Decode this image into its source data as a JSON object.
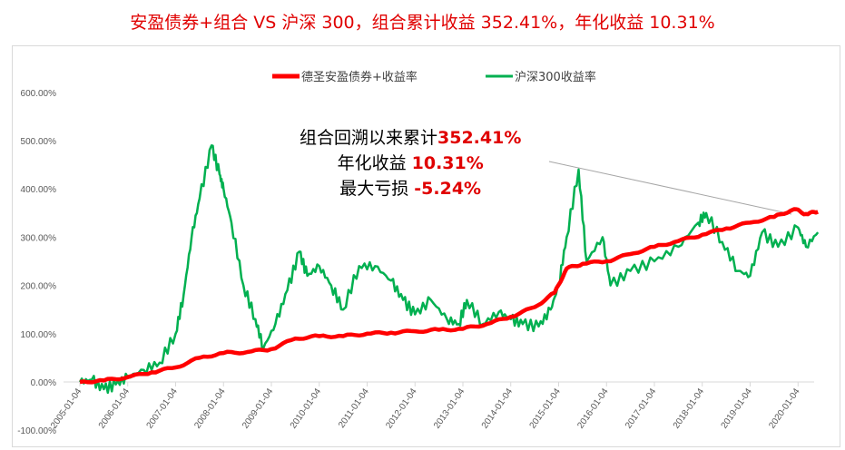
{
  "title": "安盈债券+组合 VS 沪深 300，组合累计收益 352.41%，年化收益 10.31%",
  "annotation": {
    "line1_label": "组合回溯以来累计",
    "line1_value": "352.41%",
    "line2_label": "年化收益 ",
    "line2_value": "10.31%",
    "line3_label": "最大亏损 ",
    "line3_value": "-5.24%"
  },
  "chart_data": {
    "type": "line",
    "legend_position": "top",
    "grid": "horizontal",
    "ylim": [
      -100,
      600
    ],
    "yticks": [
      "600.00%",
      "500.00%",
      "400.00%",
      "300.00%",
      "200.00%",
      "100.00%",
      "0.00%",
      "-100.00%"
    ],
    "ytick_values": [
      600,
      500,
      400,
      300,
      200,
      100,
      0,
      -100
    ],
    "xticks": [
      "2005-01-04",
      "2006-01-04",
      "2007-01-04",
      "2008-01-04",
      "2009-01-04",
      "2010-01-04",
      "2011-01-04",
      "2012-01-04",
      "2013-01-04",
      "2014-01-04",
      "2015-01-04",
      "2016-01-04",
      "2017-01-04",
      "2018-01-04",
      "2019-01-04",
      "2020-01-04"
    ],
    "series": [
      {
        "name": "德圣安盈债券+收益率",
        "color": "#ff0000",
        "points": [
          [
            "2005-01",
            0
          ],
          [
            "2005-07",
            3
          ],
          [
            "2006-01",
            10
          ],
          [
            "2006-07",
            20
          ],
          [
            "2007-01",
            30
          ],
          [
            "2007-07",
            50
          ],
          [
            "2008-01",
            60
          ],
          [
            "2008-07",
            62
          ],
          [
            "2009-01",
            68
          ],
          [
            "2009-07",
            90
          ],
          [
            "2010-01",
            95
          ],
          [
            "2010-07",
            95
          ],
          [
            "2011-01",
            100
          ],
          [
            "2011-07",
            102
          ],
          [
            "2012-01",
            105
          ],
          [
            "2012-07",
            108
          ],
          [
            "2013-01",
            110
          ],
          [
            "2013-07",
            120
          ],
          [
            "2014-01",
            135
          ],
          [
            "2014-07",
            155
          ],
          [
            "2014-12",
            185
          ],
          [
            "2015-03",
            235
          ],
          [
            "2015-07",
            245
          ],
          [
            "2016-01",
            250
          ],
          [
            "2016-07",
            265
          ],
          [
            "2017-01",
            280
          ],
          [
            "2017-07",
            292
          ],
          [
            "2018-01",
            305
          ],
          [
            "2018-07",
            318
          ],
          [
            "2019-01",
            330
          ],
          [
            "2019-07",
            342
          ],
          [
            "2019-12",
            358
          ],
          [
            "2020-03",
            348
          ],
          [
            "2020-06",
            352.41
          ]
        ]
      },
      {
        "name": "沪深300收益率",
        "color": "#00b050",
        "points": [
          [
            "2005-01",
            0
          ],
          [
            "2005-04",
            5
          ],
          [
            "2005-07",
            -15
          ],
          [
            "2005-10",
            -5
          ],
          [
            "2006-01",
            10
          ],
          [
            "2006-05",
            25
          ],
          [
            "2006-09",
            40
          ],
          [
            "2007-01",
            100
          ],
          [
            "2007-03",
            180
          ],
          [
            "2007-05",
            300
          ],
          [
            "2007-07",
            380
          ],
          [
            "2007-10",
            490
          ],
          [
            "2007-12",
            430
          ],
          [
            "2008-01",
            400
          ],
          [
            "2008-03",
            330
          ],
          [
            "2008-06",
            200
          ],
          [
            "2008-09",
            130
          ],
          [
            "2008-11",
            70
          ],
          [
            "2009-02",
            120
          ],
          [
            "2009-05",
            190
          ],
          [
            "2009-08",
            270
          ],
          [
            "2009-10",
            220
          ],
          [
            "2010-01",
            240
          ],
          [
            "2010-04",
            200
          ],
          [
            "2010-07",
            150
          ],
          [
            "2010-11",
            240
          ],
          [
            "2011-03",
            240
          ],
          [
            "2011-07",
            210
          ],
          [
            "2011-10",
            170
          ],
          [
            "2012-01",
            140
          ],
          [
            "2012-05",
            170
          ],
          [
            "2012-09",
            130
          ],
          [
            "2012-12",
            120
          ],
          [
            "2013-02",
            170
          ],
          [
            "2013-06",
            120
          ],
          [
            "2013-10",
            145
          ],
          [
            "2014-01",
            130
          ],
          [
            "2014-04",
            120
          ],
          [
            "2014-08",
            115
          ],
          [
            "2014-11",
            150
          ],
          [
            "2015-01",
            200
          ],
          [
            "2015-03",
            300
          ],
          [
            "2015-06",
            440
          ],
          [
            "2015-08",
            250
          ],
          [
            "2015-12",
            300
          ],
          [
            "2016-02",
            200
          ],
          [
            "2016-07",
            230
          ],
          [
            "2017-01",
            250
          ],
          [
            "2017-07",
            280
          ],
          [
            "2017-12",
            330
          ],
          [
            "2018-02",
            350
          ],
          [
            "2018-06",
            290
          ],
          [
            "2018-10",
            230
          ],
          [
            "2019-01",
            220
          ],
          [
            "2019-04",
            310
          ],
          [
            "2019-08",
            280
          ],
          [
            "2020-01",
            320
          ],
          [
            "2020-03",
            280
          ],
          [
            "2020-06",
            310
          ]
        ]
      }
    ]
  }
}
